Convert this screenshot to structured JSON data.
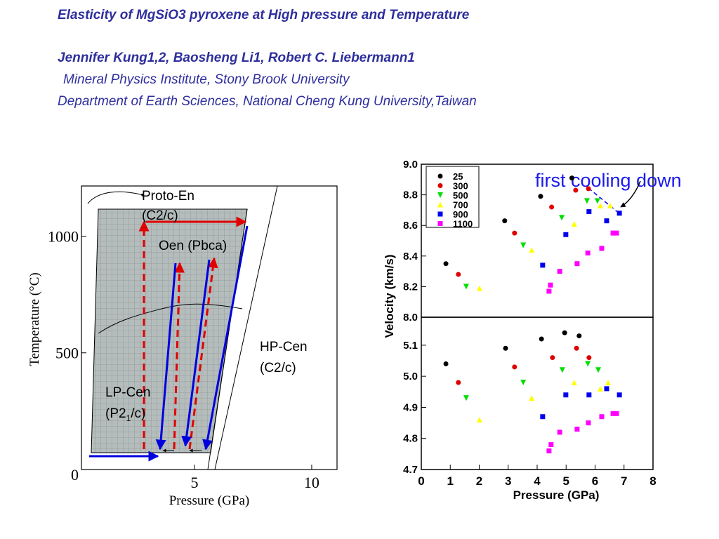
{
  "header": {
    "title": "Elasticity of MgSiO3 pyroxene at High pressure and Temperature",
    "authors": "Jennifer Kung1,2, Baosheng Li1, Robert C. Liebermann1",
    "affiliation_1": "Mineral Physics Institute, Stony Brook University",
    "affiliation_2": "Department of Earth Sciences, National Cheng Kung University,Taiwan"
  },
  "chart_data": [
    {
      "type": "phase-diagram",
      "xlabel": "Pressure (GPa)",
      "ylabel": "Temperature (°C)",
      "xlim": [
        0.18,
        11.08
      ],
      "ylim": [
        0,
        1215
      ],
      "xticks": [
        5,
        10
      ],
      "yticks": [
        0,
        500,
        1000
      ],
      "labels": {
        "proto_en": "Proto-En",
        "proto_en_sym": "(C2/c)",
        "oen": "Oen (Pbca)",
        "hp_cen": "HP-Cen",
        "hp_cen_sym": "(C2/c)",
        "lp_cen": "LP-Cen",
        "lp_cen_sym_a": "(P2",
        "lp_cen_sym_sub": "1",
        "lp_cen_sym_b": "/c)"
      }
    },
    {
      "type": "scatter",
      "ylabel": "Velocity (km/s)",
      "xlim": [
        0,
        8
      ],
      "ylim": [
        8.0,
        9.0
      ],
      "yticks": [
        {
          "value": 8.0,
          "label": "8.0"
        },
        8.2,
        8.4,
        8.6,
        8.8,
        {
          "value": 9.0,
          "label": "9.0"
        }
      ],
      "legend": "upper left",
      "annotation": "first cooling down",
      "series": [
        {
          "name": "25",
          "color": "#000000",
          "x": [
            0.85,
            2.88,
            4.12,
            5.2
          ],
          "values": [
            8.35,
            8.63,
            8.79,
            8.91
          ]
        },
        {
          "name": "300",
          "color": "#e00000",
          "x": [
            1.28,
            3.22,
            4.5,
            5.33,
            5.77
          ],
          "values": [
            8.28,
            8.55,
            8.72,
            8.83,
            8.84
          ]
        },
        {
          "name": "500",
          "color": "#00dd00",
          "x": [
            1.55,
            3.52,
            4.85,
            5.72,
            6.08
          ],
          "values": [
            8.2,
            8.47,
            8.65,
            8.76,
            8.76
          ]
        },
        {
          "name": "700",
          "color": "#ffff00",
          "x": [
            2.01,
            3.81,
            5.28,
            6.18,
            6.52
          ],
          "values": [
            8.19,
            8.44,
            8.61,
            8.73,
            8.73
          ]
        },
        {
          "name": "900",
          "color": "#0000ee",
          "x": [
            4.19,
            4.99,
            5.79,
            6.4,
            6.84
          ],
          "values": [
            8.34,
            8.54,
            8.69,
            8.63,
            8.68
          ]
        },
        {
          "name": "1100",
          "color": "#ff00ff",
          "x": [
            4.41,
            4.46,
            4.78,
            5.38,
            5.75,
            6.23,
            6.62,
            6.74
          ],
          "values": [
            8.17,
            8.21,
            8.3,
            8.35,
            8.42,
            8.45,
            8.55,
            8.55
          ]
        }
      ]
    },
    {
      "type": "scatter",
      "xlabel": "Pressure (GPa)",
      "xlim": [
        0,
        8
      ],
      "ylim": [
        4.7,
        5.19
      ],
      "xticks": [
        0,
        1,
        2,
        3,
        4,
        5,
        6,
        7,
        8
      ],
      "yticks": [
        4.7,
        4.8,
        4.9,
        {
          "value": 5.0,
          "label": "5.0"
        },
        5.1
      ],
      "series": [
        {
          "color": "#000000",
          "x": [
            0.85,
            2.91,
            4.15,
            4.95,
            5.45
          ],
          "values": [
            5.04,
            5.09,
            5.12,
            5.14,
            5.13
          ]
        },
        {
          "color": "#e00000",
          "x": [
            1.28,
            3.22,
            4.53,
            5.36,
            5.79
          ],
          "values": [
            4.98,
            5.03,
            5.06,
            5.09,
            5.06
          ]
        },
        {
          "color": "#00dd00",
          "x": [
            1.55,
            3.52,
            4.87,
            5.75,
            6.11
          ],
          "values": [
            4.93,
            4.98,
            5.02,
            5.04,
            5.02
          ]
        },
        {
          "color": "#ffff00",
          "x": [
            2.01,
            3.81,
            5.28,
            6.18,
            6.45
          ],
          "values": [
            4.86,
            4.93,
            4.98,
            4.96,
            4.98
          ]
        },
        {
          "color": "#0000ee",
          "x": [
            4.19,
            4.99,
            5.79,
            6.4,
            6.84
          ],
          "values": [
            4.87,
            4.94,
            4.94,
            4.96,
            4.94
          ]
        },
        {
          "color": "#ff00ff",
          "x": [
            4.41,
            4.48,
            4.78,
            5.38,
            5.77,
            6.23,
            6.62,
            6.74
          ],
          "values": [
            4.76,
            4.78,
            4.82,
            4.83,
            4.85,
            4.87,
            4.88,
            4.88
          ]
        }
      ]
    }
  ]
}
